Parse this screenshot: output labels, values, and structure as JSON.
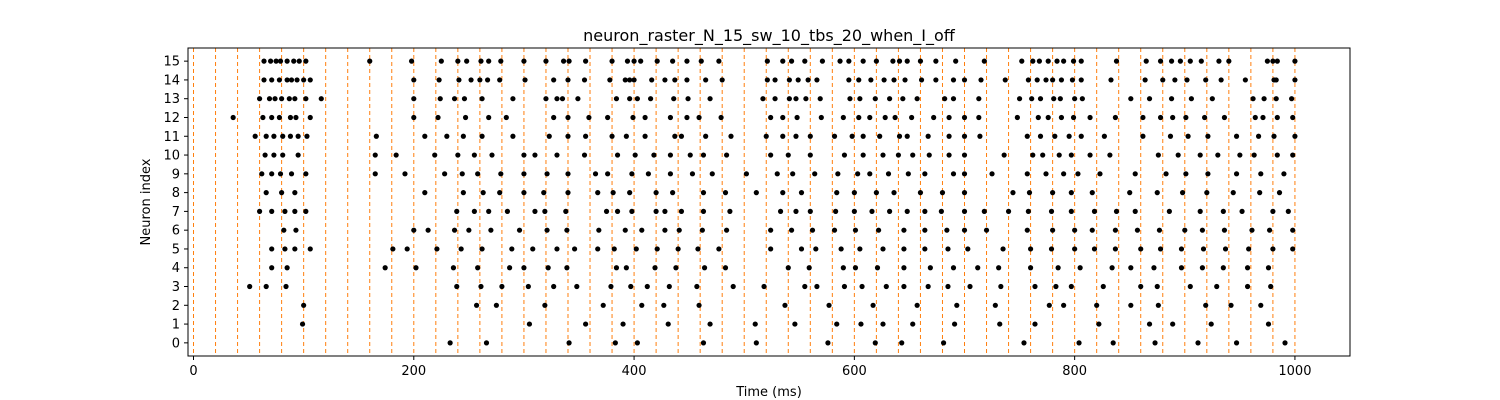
{
  "chart_data": {
    "type": "scatter",
    "title": "neuron_raster_N_15_sw_10_tbs_20_when_I_off",
    "xlabel": "Time (ms)",
    "ylabel": "Neuron index",
    "xlim": [
      -5,
      1050
    ],
    "ylim": [
      -0.7,
      15.7
    ],
    "xticks": [
      0,
      200,
      400,
      600,
      800,
      1000
    ],
    "yticks": [
      0,
      1,
      2,
      3,
      4,
      5,
      6,
      7,
      8,
      9,
      10,
      11,
      12,
      13,
      14,
      15
    ],
    "grid": false,
    "vlines": {
      "color": "#ff7f0e",
      "style": "dashed",
      "x": [
        0,
        20,
        40,
        60,
        80,
        100,
        120,
        140,
        160,
        180,
        200,
        220,
        240,
        260,
        280,
        300,
        320,
        340,
        360,
        380,
        400,
        420,
        440,
        460,
        480,
        500,
        520,
        540,
        560,
        580,
        600,
        620,
        640,
        660,
        680,
        700,
        720,
        740,
        760,
        780,
        800,
        820,
        840,
        860,
        880,
        900,
        920,
        940,
        960,
        980,
        1000
      ]
    },
    "marker_color": "#000000",
    "series": [
      {
        "neuron": 15,
        "times": [
          64,
          70,
          75,
          79,
          85,
          91,
          96,
          102,
          160,
          198,
          225,
          240,
          248,
          261,
          268,
          279,
          300,
          320,
          336,
          341,
          356,
          380,
          394,
          400,
          406,
          421,
          435,
          448,
          461,
          477,
          521,
          535,
          543,
          555,
          571,
          587,
          595,
          608,
          620,
          635,
          641,
          648,
          660,
          674,
          692,
          718,
          752,
          762,
          768,
          776,
          784,
          790,
          799,
          806,
          838,
          865,
          878,
          888,
          896,
          905,
          915,
          931,
          940,
          975,
          980,
          984,
          1000
        ]
      },
      {
        "neuron": 14,
        "times": [
          64,
          71,
          78,
          85,
          89,
          94,
          100,
          106,
          200,
          223,
          241,
          252,
          260,
          267,
          278,
          301,
          327,
          340,
          355,
          378,
          392,
          396,
          400,
          416,
          428,
          437,
          448,
          465,
          480,
          521,
          528,
          541,
          549,
          558,
          566,
          595,
          604,
          615,
          627,
          636,
          646,
          661,
          674,
          690,
          700,
          715,
          737,
          758,
          766,
          774,
          780,
          788,
          798,
          806,
          833,
          864,
          880,
          891,
          902,
          919,
          933,
          955,
          981,
          983,
          1000
        ]
      },
      {
        "neuron": 13,
        "times": [
          60,
          69,
          74,
          80,
          87,
          92,
          102,
          116,
          200,
          224,
          237,
          246,
          262,
          290,
          320,
          330,
          335,
          349,
          384,
          396,
          403,
          415,
          436,
          449,
          469,
          517,
          528,
          541,
          547,
          556,
          569,
          596,
          605,
          619,
          632,
          644,
          657,
          682,
          690,
          713,
          750,
          761,
          769,
          781,
          787,
          800,
          807,
          851,
          868,
          888,
          906,
          925,
          962,
          972,
          983,
          997
        ]
      },
      {
        "neuron": 12,
        "times": [
          36,
          63,
          71,
          78,
          88,
          93,
          106,
          200,
          222,
          247,
          268,
          284,
          327,
          340,
          359,
          376,
          399,
          410,
          433,
          448,
          459,
          479,
          524,
          535,
          548,
          570,
          590,
          604,
          614,
          628,
          637,
          652,
          672,
          686,
          700,
          713,
          748,
          767,
          776,
          788,
          799,
          814,
          837,
          862,
          878,
          889,
          901,
          918,
          936,
          964,
          971,
          984,
          998
        ]
      },
      {
        "neuron": 11,
        "times": [
          56,
          66,
          73,
          81,
          88,
          95,
          103,
          166,
          210,
          230,
          245,
          262,
          290,
          323,
          340,
          356,
          380,
          393,
          410,
          437,
          443,
          465,
          488,
          520,
          535,
          547,
          560,
          582,
          598,
          608,
          623,
          641,
          648,
          667,
          686,
          700,
          714,
          757,
          769,
          782,
          795,
          806,
          827,
          862,
          887,
          903,
          921,
          947,
          967,
          981,
          1000
        ]
      },
      {
        "neuron": 10,
        "times": [
          65,
          73,
          81,
          95,
          165,
          184,
          219,
          240,
          255,
          271,
          300,
          310,
          330,
          355,
          385,
          401,
          418,
          433,
          451,
          463,
          484,
          524,
          540,
          560,
          591,
          608,
          626,
          640,
          653,
          668,
          686,
          700,
          736,
          762,
          771,
          786,
          797,
          814,
          832,
          876,
          894,
          914,
          930,
          950,
          963,
          984,
          998
        ]
      },
      {
        "neuron": 9,
        "times": [
          62,
          71,
          79,
          89,
          102,
          165,
          192,
          228,
          244,
          258,
          279,
          300,
          321,
          340,
          365,
          376,
          398,
          413,
          433,
          453,
          471,
          502,
          530,
          544,
          564,
          585,
          603,
          614,
          631,
          649,
          664,
          690,
          700,
          725,
          757,
          774,
          790,
          803,
          823,
          855,
          883,
          901,
          921,
          947,
          969,
          990
        ]
      },
      {
        "neuron": 8,
        "times": [
          66,
          80,
          92,
          210,
          245,
          263,
          278,
          300,
          318,
          340,
          367,
          381,
          396,
          420,
          435,
          463,
          483,
          511,
          535,
          552,
          584,
          600,
          620,
          636,
          660,
          680,
          700,
          744,
          759,
          780,
          797,
          816,
          850,
          875,
          898,
          920,
          944,
          968,
          986
        ]
      },
      {
        "neuron": 7,
        "times": [
          60,
          71,
          83,
          92,
          102,
          239,
          255,
          268,
          285,
          310,
          319,
          338,
          375,
          385,
          398,
          420,
          428,
          443,
          463,
          487,
          533,
          547,
          560,
          583,
          600,
          616,
          632,
          648,
          664,
          679,
          700,
          718,
          740,
          758,
          779,
          797,
          818,
          838,
          855,
          886,
          914,
          935,
          952,
          980,
          994
        ]
      },
      {
        "neuron": 6,
        "times": [
          82,
          93,
          200,
          213,
          237,
          250,
          270,
          296,
          321,
          339,
          368,
          392,
          407,
          428,
          441,
          462,
          484,
          524,
          543,
          562,
          582,
          601,
          622,
          645,
          664,
          684,
          700,
          720,
          757,
          780,
          800,
          816,
          837,
          857,
          877,
          900,
          916,
          936,
          961,
          977,
          998
        ]
      },
      {
        "neuron": 5,
        "times": [
          71,
          83,
          92,
          106,
          181,
          194,
          221,
          243,
          262,
          289,
          308,
          330,
          346,
          367,
          382,
          402,
          421,
          440,
          458,
          477,
          524,
          552,
          565,
          588,
          605,
          626,
          645,
          664,
          685,
          703,
          735,
          760,
          779,
          800,
          818,
          837,
          860,
          878,
          897,
          917,
          937,
          958,
          980,
          998
        ]
      },
      {
        "neuron": 4,
        "times": [
          71,
          85,
          174,
          202,
          236,
          258,
          287,
          300,
          322,
          339,
          384,
          393,
          419,
          438,
          464,
          483,
          540,
          559,
          590,
          601,
          621,
          645,
          669,
          690,
          712,
          731,
          760,
          785,
          805,
          834,
          851,
          872,
          897,
          916,
          935,
          957,
          976
        ]
      },
      {
        "neuron": 3,
        "times": [
          51,
          66,
          84,
          239,
          261,
          280,
          304,
          327,
          348,
          379,
          397,
          412,
          432,
          457,
          490,
          518,
          555,
          566,
          591,
          607,
          629,
          645,
          667,
          685,
          705,
          733,
          764,
          783,
          797,
          826,
          860,
          875,
          905,
          929,
          957,
          978
        ]
      },
      {
        "neuron": 2,
        "times": [
          100,
          257,
          275,
          319,
          372,
          407,
          427,
          459,
          537,
          577,
          617,
          657,
          693,
          728,
          777,
          790,
          820,
          851,
          876,
          919,
          942,
          969
        ]
      },
      {
        "neuron": 1,
        "times": [
          99,
          305,
          356,
          390,
          431,
          469,
          510,
          546,
          584,
          606,
          626,
          653,
          691,
          732,
          764,
          822,
          868,
          889,
          924,
          976
        ]
      },
      {
        "neuron": 0,
        "times": [
          233,
          266,
          341,
          383,
          403,
          463,
          511,
          576,
          619,
          643,
          681,
          754,
          804,
          835,
          873,
          912,
          947,
          991
        ]
      }
    ]
  }
}
